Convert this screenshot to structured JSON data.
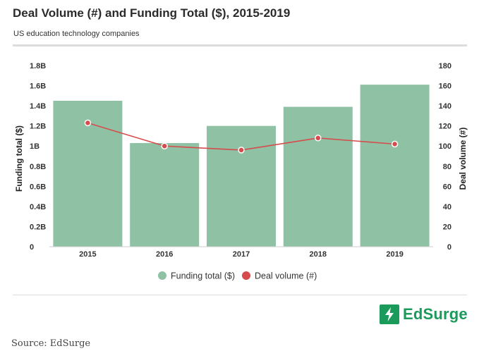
{
  "chart_data": {
    "type": "bar",
    "title": "Deal Volume (#) and Funding Total ($), 2015-2019",
    "subtitle": "US education technology companies",
    "categories": [
      "2015",
      "2016",
      "2017",
      "2018",
      "2019"
    ],
    "series": [
      {
        "name": "Funding total ($)",
        "type": "bar",
        "axis": "left",
        "values": [
          1.45,
          1.03,
          1.2,
          1.39,
          1.61
        ],
        "color": "#8fc2a4"
      },
      {
        "name": "Deal volume (#)",
        "type": "line",
        "axis": "right",
        "values": [
          123,
          100,
          96,
          108,
          102
        ],
        "color": "#d64b4b"
      }
    ],
    "ylabel": "Funding total ($)",
    "y2label": "Deal volume (#)",
    "ylim": [
      0,
      1.8
    ],
    "y2lim": [
      0,
      180
    ],
    "yticks": [
      "0",
      "0.2B",
      "0.4B",
      "0.6B",
      "0.8B",
      "1B",
      "1.2B",
      "1.4B",
      "1.6B",
      "1.8B"
    ],
    "y2ticks": [
      "0",
      "20",
      "40",
      "60",
      "80",
      "100",
      "120",
      "140",
      "160",
      "180"
    ],
    "legend": "bottom",
    "grid": false
  },
  "source": "Source: EdSurge",
  "logo": {
    "text": "EdSurge",
    "color": "#1a9a5b",
    "icon": "lightning-bolt-icon"
  }
}
